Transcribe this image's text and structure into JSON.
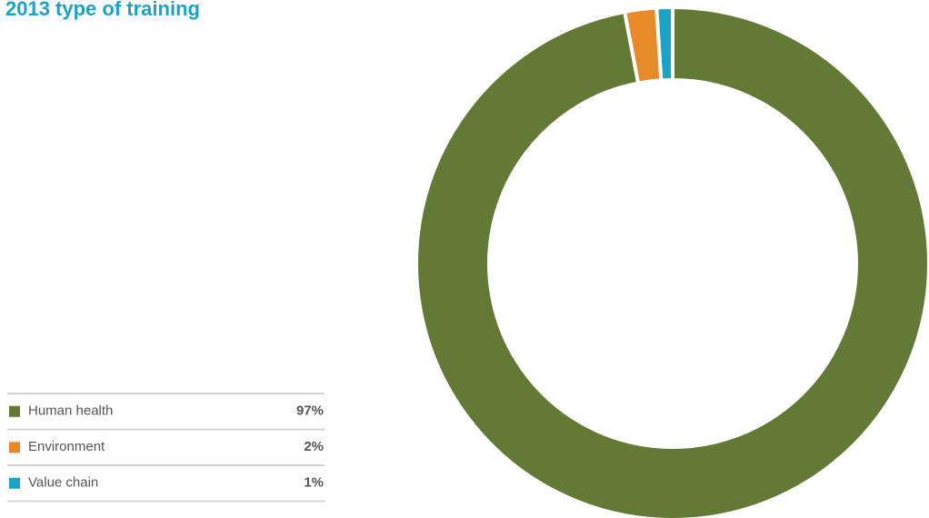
{
  "chart_data": {
    "type": "donut",
    "title": "2013 type of training",
    "categories": [
      "Human health",
      "Environment",
      "Value chain"
    ],
    "values": [
      97,
      2,
      1
    ],
    "value_labels": [
      "97%",
      "2%",
      "1%"
    ],
    "colors": [
      "#627a35",
      "#e8892a",
      "#1ba3c6"
    ]
  }
}
